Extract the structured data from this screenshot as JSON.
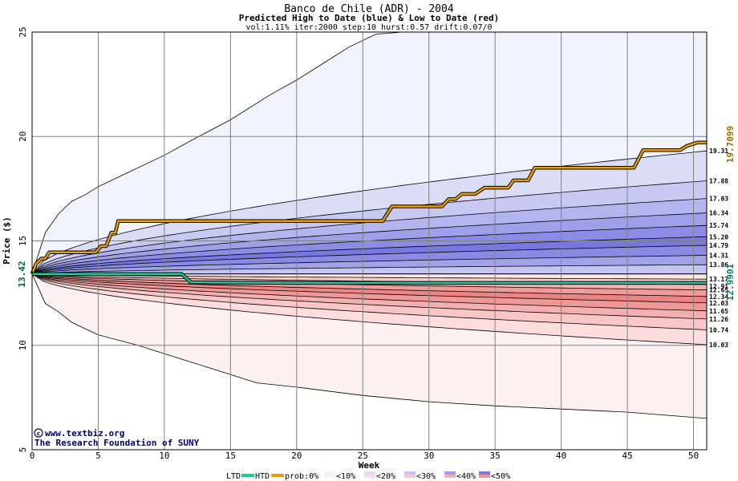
{
  "chart_data": {
    "type": "area",
    "title": "Banco de Chile (ADR) - 2004",
    "subtitle": "Predicted High to Date (blue) &  Low to Date (red)",
    "params": "vol:1.11% iter:2000 step:10 hurst:0.57 drift:0.07/0",
    "xlabel": "Week",
    "ylabel": "Price ($)",
    "xlim": [
      0,
      51
    ],
    "ylim": [
      5,
      25
    ],
    "x_ticks": [
      "0",
      "5",
      "10",
      "15",
      "20",
      "25",
      "30",
      "35",
      "40",
      "45",
      "50"
    ],
    "y_ticks": [
      "5",
      "10",
      "15",
      "20",
      "25"
    ],
    "grid": true,
    "start_value": "13.42",
    "start_price": 13.42,
    "end_high_label": "19.7099",
    "end_high_value": 19.71,
    "end_low_label": "12.9901",
    "end_low_value": 12.99,
    "right_labels": [
      "19.31",
      "17.88",
      "17.03",
      "16.34",
      "15.74",
      "15.20",
      "14.79",
      "14.31",
      "13.86",
      "13.17",
      "12.91",
      "12.65",
      "12.34",
      "12.03",
      "11.65",
      "11.26",
      "10.74",
      "10.03"
    ],
    "bands_high_end": [
      25,
      19.31,
      17.88,
      17.03,
      16.34,
      15.74,
      15.2,
      14.79,
      14.31,
      13.86,
      13.42
    ],
    "bands_low_end": [
      13.42,
      13.17,
      12.91,
      12.65,
      12.34,
      12.03,
      11.65,
      11.26,
      10.74,
      10.03,
      6.5
    ],
    "band_colors_high": [
      "#f2f2fc",
      "#dcdcf6",
      "#c8c8f2",
      "#b4b4ee",
      "#a0a0ea",
      "#8c8ce6",
      "#7878e2",
      "#8a8ae4",
      "#a2a2ea",
      "#c4c4f2"
    ],
    "band_colors_low": [
      "#fce8e8",
      "#f8cccc",
      "#f4b2b2",
      "#f09a9a",
      "#ec8484",
      "#f09898",
      "#f4b0b0",
      "#f8c6c6",
      "#fcdcdc",
      "#fdf0f0"
    ],
    "outer_high": [
      [
        0,
        13.42
      ],
      [
        1,
        15.4
      ],
      [
        2,
        16.3
      ],
      [
        3,
        16.9
      ],
      [
        4,
        17.2
      ],
      [
        5,
        17.6
      ],
      [
        7,
        18.2
      ],
      [
        10,
        19.1
      ],
      [
        12,
        19.8
      ],
      [
        15,
        20.8
      ],
      [
        18,
        22.0
      ],
      [
        20,
        22.7
      ],
      [
        22,
        23.5
      ],
      [
        24,
        24.3
      ],
      [
        26,
        24.9
      ],
      [
        28,
        25.1
      ]
    ],
    "outer_low": [
      [
        0,
        13.42
      ],
      [
        1,
        12.0
      ],
      [
        2,
        11.6
      ],
      [
        3,
        11.1
      ],
      [
        5,
        10.5
      ],
      [
        8,
        10.0
      ],
      [
        10,
        9.6
      ],
      [
        12,
        9.2
      ],
      [
        15,
        8.6
      ],
      [
        17,
        8.2
      ],
      [
        20,
        8.0
      ],
      [
        25,
        7.6
      ],
      [
        30,
        7.3
      ],
      [
        35,
        7.1
      ],
      [
        40,
        6.95
      ],
      [
        45,
        6.8
      ],
      [
        50,
        6.55
      ],
      [
        51,
        6.5
      ]
    ],
    "series": [
      {
        "name": "HTD",
        "color": "#e8a000",
        "points": [
          [
            0,
            13.42
          ],
          [
            0.3,
            13.9
          ],
          [
            0.7,
            14.15
          ],
          [
            1.0,
            14.15
          ],
          [
            1.3,
            14.45
          ],
          [
            2,
            14.45
          ],
          [
            4.8,
            14.45
          ],
          [
            5.2,
            14.75
          ],
          [
            5.6,
            14.75
          ],
          [
            6.0,
            15.4
          ],
          [
            6.3,
            15.4
          ],
          [
            6.5,
            15.95
          ],
          [
            25,
            15.95
          ],
          [
            26.5,
            15.95
          ],
          [
            27.2,
            16.65
          ],
          [
            31,
            16.65
          ],
          [
            31.5,
            17.0
          ],
          [
            32,
            17.0
          ],
          [
            32.5,
            17.25
          ],
          [
            33.5,
            17.25
          ],
          [
            34.2,
            17.55
          ],
          [
            36,
            17.55
          ],
          [
            36.4,
            17.9
          ],
          [
            37.5,
            17.9
          ],
          [
            38.0,
            18.5
          ],
          [
            45.5,
            18.5
          ],
          [
            46.2,
            19.35
          ],
          [
            49,
            19.35
          ],
          [
            49.5,
            19.55
          ],
          [
            50.3,
            19.71
          ],
          [
            51,
            19.71
          ]
        ]
      },
      {
        "name": "LTD",
        "color": "#20c8a0",
        "points": [
          [
            0,
            13.42
          ],
          [
            11.3,
            13.42
          ],
          [
            11.7,
            13.2
          ],
          [
            12.0,
            13.02
          ],
          [
            20,
            12.99
          ],
          [
            51,
            12.99
          ]
        ]
      }
    ]
  },
  "credit": {
    "copyright": "www.textbiz.org",
    "org": "The Research Foundation of SUNY"
  },
  "legend": {
    "ltd": "LTD",
    "htd": "HTD",
    "prob": "prob:0%",
    "p10": "<10%",
    "p20": "<20%",
    "p30": "<30%",
    "p40": "<40%",
    "p50": "<50%",
    "ltd_color": "#20c8a0",
    "htd_color": "#e8a000",
    "swatches": [
      {
        "key": "p10",
        "hi": "#f2f2fc",
        "lo": "#fdf0f0"
      },
      {
        "key": "p20",
        "hi": "#dcdcf6",
        "lo": "#fcdcdc"
      },
      {
        "key": "p30",
        "hi": "#c4c4f2",
        "lo": "#f8c6c6"
      },
      {
        "key": "p40",
        "hi": "#a0a0ea",
        "lo": "#f4b0b0"
      },
      {
        "key": "p50",
        "hi": "#7878e2",
        "lo": "#f09090"
      }
    ]
  }
}
